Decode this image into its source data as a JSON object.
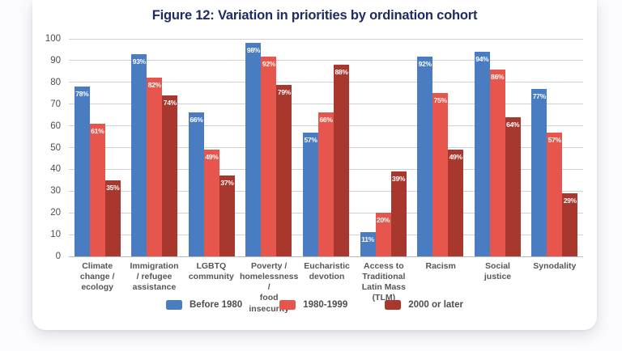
{
  "figure": {
    "title": "Figure 12: Variation in priorities by ordination cohort"
  },
  "chart_data": {
    "type": "bar",
    "title": "Figure 12: Variation in priorities by ordination cohort",
    "categories": [
      "Climate\nchange /\necology",
      "Immigration\n/ refugee\nassistance",
      "LGBTQ\ncommunity",
      "Poverty /\nhomelessness /\nfood insecurity",
      "Eucharistic\ndevotion",
      "Access to\nTraditional\nLatin Mass\n(TLM)",
      "Racism",
      "Social\njustice",
      "Synodality"
    ],
    "series": [
      {
        "name": "Before 1980",
        "color": "#4a7cc2",
        "values": [
          78,
          93,
          66,
          98,
          57,
          11,
          92,
          94,
          77
        ]
      },
      {
        "name": "1980-1999",
        "color": "#e6564c",
        "values": [
          61,
          82,
          49,
          92,
          66,
          20,
          75,
          86,
          57
        ]
      },
      {
        "name": "2000 or later",
        "color": "#a8382e",
        "values": [
          35,
          74,
          37,
          79,
          88,
          39,
          49,
          64,
          29
        ]
      }
    ],
    "value_suffix": "%",
    "data_labels": true,
    "xlabel": "",
    "ylabel": "",
    "ylim": [
      0,
      100
    ],
    "ytick_step": 10,
    "yticks": [
      0,
      10,
      20,
      30,
      40,
      50,
      60,
      70,
      80,
      90,
      100
    ],
    "grid": true,
    "legend_position": "bottom"
  },
  "style": {
    "title_color": "#1f2c62",
    "background": "#fcfcfe",
    "card_background": "#ffffff",
    "gridline_color": "#cfcfd4",
    "axis_text_color": "#4d4d50",
    "category_text_color": "#56565a",
    "bar_label_color": "#ffffff"
  }
}
